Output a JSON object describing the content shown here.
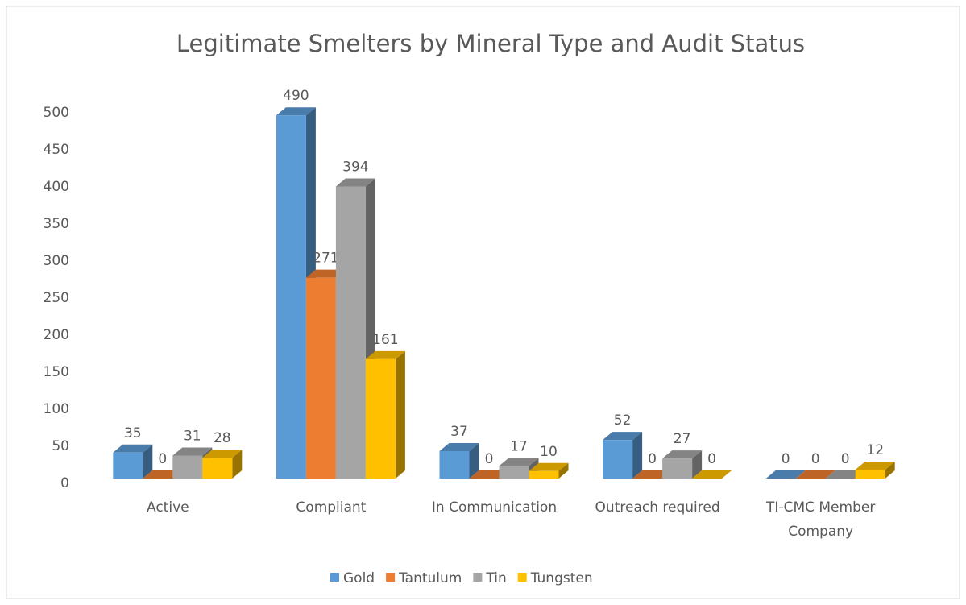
{
  "chart_data": {
    "type": "bar3d",
    "title": "Legitimate Smelters by Mineral Type and Audit Status",
    "categories": [
      "Active",
      "Compliant",
      "In Communication",
      "Outreach required",
      "TI-CMC Member Company"
    ],
    "series": [
      {
        "name": "Gold",
        "color": "#5b9bd5",
        "values": [
          35,
          490,
          37,
          52,
          0
        ]
      },
      {
        "name": "Tantulum",
        "color": "#ed7d31",
        "values": [
          0,
          271,
          0,
          0,
          0
        ]
      },
      {
        "name": "Tin",
        "color": "#a5a5a5",
        "values": [
          31,
          394,
          17,
          27,
          0
        ]
      },
      {
        "name": "Tungsten",
        "color": "#ffc000",
        "values": [
          28,
          161,
          10,
          0,
          12
        ]
      }
    ],
    "ylim": [
      0,
      500
    ],
    "yticks": [
      0,
      50,
      100,
      150,
      200,
      250,
      300,
      350,
      400,
      450,
      500
    ],
    "grid": false,
    "legend": "bottom"
  }
}
